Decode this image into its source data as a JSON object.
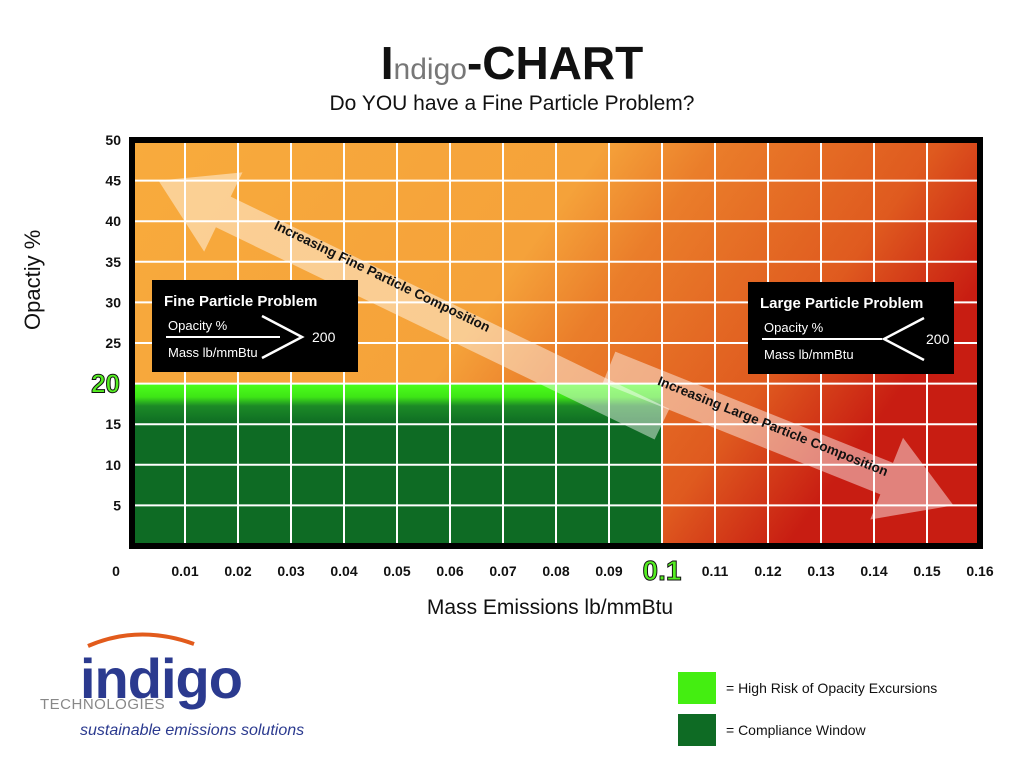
{
  "header": {
    "title_initial": "I",
    "title_brand": "ndigo",
    "title_rest": "-CHART",
    "subtitle": "Do YOU have a Fine Particle Problem?"
  },
  "chart_data": {
    "type": "heatmap",
    "xlabel": "Mass Emissions lb/mmBtu",
    "ylabel": "Opactiy %",
    "xlim": [
      0,
      0.16
    ],
    "ylim": [
      0,
      50
    ],
    "x_ticks": [
      "0",
      "0.01",
      "0.02",
      "0.03",
      "0.04",
      "0.05",
      "0.06",
      "0.07",
      "0.08",
      "0.09",
      "0.1",
      "0.11",
      "0.12",
      "0.13",
      "0.14",
      "0.15",
      "0.16"
    ],
    "y_ticks": [
      "5",
      "10",
      "15",
      "20",
      "25",
      "30",
      "35",
      "40",
      "45",
      "50"
    ],
    "highlight_x": "0.1",
    "highlight_y": "20",
    "grid": true,
    "regions": [
      {
        "name": "High Risk of Opacity Excursions",
        "x": [
          0,
          0.1
        ],
        "y": [
          15,
          20
        ],
        "color": "#4cff1a"
      },
      {
        "name": "Compliance Window",
        "x": [
          0,
          0.1
        ],
        "y": [
          0,
          15
        ],
        "color": "#0e6b24"
      }
    ],
    "arrows": [
      {
        "label": "Increasing Fine Particle Composition",
        "from": [
          0.1,
          15
        ],
        "to": [
          0.005,
          45
        ]
      },
      {
        "label": "Increasing Large Particle Composition",
        "from": [
          0.09,
          22
        ],
        "to": [
          0.155,
          5
        ]
      }
    ],
    "annotations": [
      {
        "title": "Fine Particle Problem",
        "numerator": "Opacity %",
        "denominator": "Mass lb/mmBtu",
        "comparator": ">",
        "value": "200"
      },
      {
        "title": "Large Particle Problem",
        "numerator": "Opacity %",
        "denominator": "Mass lb/mmBtu",
        "comparator": "<",
        "value": "200"
      }
    ],
    "colors": {
      "fine_zone": "#f8a93a",
      "large_zone": "#c81e12",
      "high_risk": "#4cff1a",
      "compliance": "#0e6b24",
      "highlight_label": "#55ee22"
    }
  },
  "legend": [
    {
      "label": "= High Risk of Opacity Excursions",
      "color": "#44ee11"
    },
    {
      "label": "= Compliance Window",
      "color": "#0e6b24"
    }
  ],
  "logo": {
    "word": "indigo",
    "sub": "TECHNOLOGIES",
    "tagline": "sustainable emissions solutions"
  }
}
